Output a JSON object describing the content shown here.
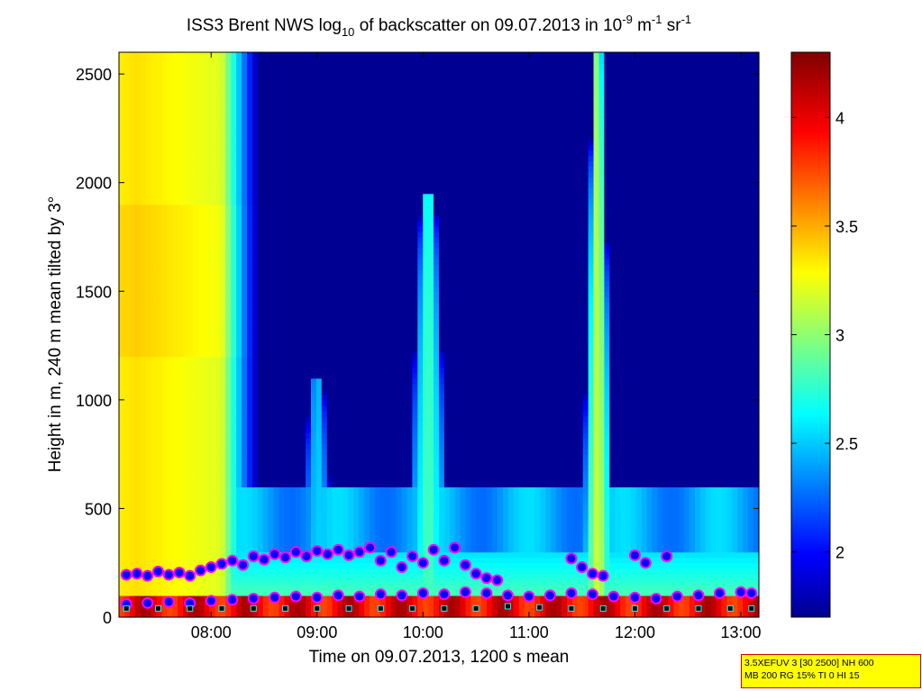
{
  "figure": {
    "title_main": "ISS3 Brent NWS log",
    "title_sub": "10",
    "title_rest": " of backscatter on 09.07.2013 in 10",
    "title_exp1": "-9",
    "title_m": " m",
    "title_exp2": "-1",
    "title_sr": " sr",
    "title_exp3": "-1"
  },
  "chart_data": {
    "type": "heatmap",
    "title": "ISS3 Brent NWS log10 of backscatter on 09.07.2013 in 10^-9 m^-1 sr^-1",
    "xlabel": "Time on 09.07.2013, 1200 s mean",
    "ylabel": "Height in m, 240 m mean tilted by 3°",
    "x_ticks": [
      "08:00",
      "09:00",
      "10:00",
      "11:00",
      "12:00",
      "13:00"
    ],
    "x_tick_hours": [
      8,
      9,
      10,
      11,
      12,
      13
    ],
    "xlim_hours": [
      7.13,
      13.17
    ],
    "y_ticks": [
      0,
      500,
      1000,
      1500,
      2000,
      2500
    ],
    "ylim": [
      0,
      2600
    ],
    "colorbar": {
      "ticks": [
        2,
        2.5,
        3,
        3.5,
        4
      ],
      "range": [
        1.7,
        4.3
      ],
      "colormap": "jet"
    },
    "background_value": 1.75,
    "features": [
      {
        "kind": "aerosol_layer",
        "t_start": 7.13,
        "t_end": 8.45,
        "top_m": 2600,
        "value": 3.4
      },
      {
        "kind": "plume",
        "t_center": 10.05,
        "width_h": 0.45,
        "top_m": 1950,
        "value": 2.9
      },
      {
        "kind": "plume",
        "t_center": 11.65,
        "width_h": 0.32,
        "top_m": 2600,
        "value": 3.25
      },
      {
        "kind": "plume",
        "t_center": 9.0,
        "width_h": 0.4,
        "top_m": 1100,
        "value": 2.6
      },
      {
        "kind": "near_ground_layer",
        "t_start": 7.13,
        "t_end": 13.17,
        "top_m": 300,
        "value": 3.0
      }
    ],
    "series": [
      {
        "marker": "circle",
        "points": [
          [
            7.2,
            195
          ],
          [
            7.3,
            200
          ],
          [
            7.4,
            190
          ],
          [
            7.5,
            210
          ],
          [
            7.6,
            195
          ],
          [
            7.7,
            205
          ],
          [
            7.8,
            190
          ],
          [
            7.9,
            215
          ],
          [
            8.0,
            230
          ],
          [
            8.1,
            245
          ],
          [
            8.2,
            260
          ],
          [
            8.3,
            240
          ],
          [
            8.4,
            280
          ],
          [
            8.5,
            265
          ],
          [
            8.6,
            290
          ],
          [
            8.7,
            275
          ],
          [
            8.8,
            300
          ],
          [
            8.9,
            280
          ],
          [
            9.0,
            305
          ],
          [
            9.1,
            290
          ],
          [
            9.2,
            310
          ],
          [
            9.3,
            285
          ],
          [
            9.4,
            300
          ],
          [
            9.5,
            320
          ],
          [
            9.6,
            260
          ],
          [
            9.7,
            300
          ],
          [
            9.8,
            230
          ],
          [
            9.9,
            280
          ],
          [
            10.0,
            250
          ],
          [
            10.1,
            310
          ],
          [
            10.2,
            260
          ],
          [
            10.3,
            320
          ],
          [
            10.4,
            240
          ],
          [
            10.5,
            200
          ],
          [
            10.6,
            180
          ],
          [
            10.7,
            170
          ],
          [
            11.4,
            270
          ],
          [
            11.5,
            230
          ],
          [
            11.6,
            200
          ],
          [
            11.7,
            190
          ],
          [
            12.0,
            285
          ],
          [
            12.1,
            250
          ],
          [
            12.3,
            280
          ],
          [
            7.2,
            60
          ],
          [
            7.4,
            65
          ],
          [
            7.6,
            70
          ],
          [
            7.8,
            65
          ],
          [
            8.0,
            75
          ],
          [
            8.2,
            80
          ],
          [
            8.4,
            85
          ],
          [
            8.6,
            90
          ],
          [
            8.8,
            95
          ],
          [
            9.0,
            90
          ],
          [
            9.2,
            100
          ],
          [
            9.4,
            95
          ],
          [
            9.6,
            105
          ],
          [
            9.8,
            100
          ],
          [
            10.0,
            110
          ],
          [
            10.2,
            105
          ],
          [
            10.4,
            115
          ],
          [
            10.6,
            110
          ],
          [
            10.8,
            100
          ],
          [
            11.0,
            95
          ],
          [
            11.2,
            100
          ],
          [
            11.4,
            110
          ],
          [
            11.6,
            105
          ],
          [
            11.8,
            95
          ],
          [
            12.0,
            90
          ],
          [
            12.2,
            85
          ],
          [
            12.4,
            95
          ],
          [
            12.6,
            100
          ],
          [
            12.8,
            110
          ],
          [
            13.0,
            115
          ],
          [
            13.1,
            110
          ]
        ]
      },
      {
        "marker": "square",
        "points": [
          [
            7.2,
            40
          ],
          [
            7.5,
            40
          ],
          [
            7.8,
            40
          ],
          [
            8.1,
            40
          ],
          [
            8.4,
            40
          ],
          [
            8.7,
            40
          ],
          [
            9.0,
            40
          ],
          [
            9.3,
            40
          ],
          [
            9.6,
            40
          ],
          [
            9.9,
            40
          ],
          [
            10.2,
            40
          ],
          [
            10.5,
            40
          ],
          [
            10.8,
            50
          ],
          [
            11.1,
            45
          ],
          [
            11.4,
            40
          ],
          [
            11.7,
            40
          ],
          [
            12.0,
            40
          ],
          [
            12.3,
            40
          ],
          [
            12.6,
            40
          ],
          [
            12.9,
            40
          ],
          [
            13.1,
            40
          ]
        ]
      }
    ]
  },
  "info_box": {
    "line1": "3.5XEFUV 3 [30 2500] NH 600",
    "line2": "MB 200 RG 15% TI 0 HI 15"
  }
}
